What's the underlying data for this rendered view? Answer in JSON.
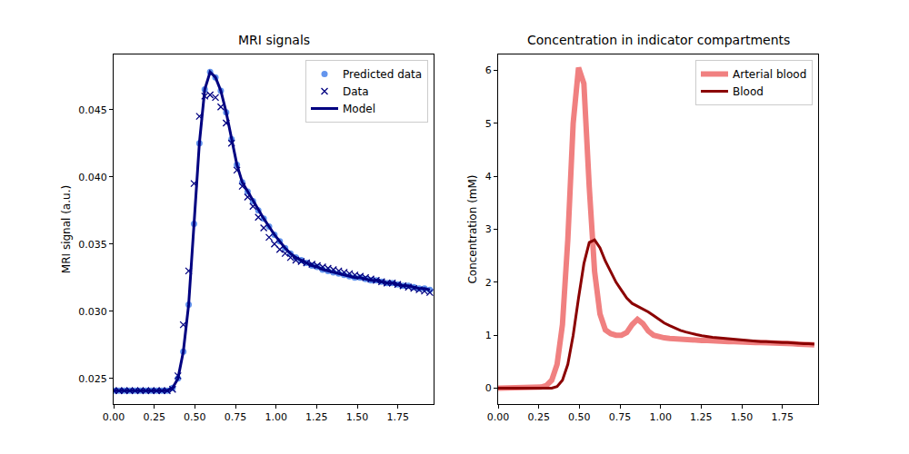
{
  "chart_data": [
    {
      "type": "line",
      "title": "MRI signals",
      "ylabel": "MRI signal (a.u.)",
      "x": [
        0,
        0.033,
        0.066,
        0.099,
        0.132,
        0.165,
        0.198,
        0.231,
        0.264,
        0.297,
        0.33,
        0.363,
        0.396,
        0.429,
        0.462,
        0.495,
        0.528,
        0.561,
        0.594,
        0.627,
        0.66,
        0.693,
        0.726,
        0.759,
        0.792,
        0.825,
        0.858,
        0.891,
        0.924,
        0.957,
        0.99,
        1.023,
        1.056,
        1.089,
        1.122,
        1.155,
        1.188,
        1.221,
        1.254,
        1.287,
        1.32,
        1.353,
        1.386,
        1.419,
        1.452,
        1.485,
        1.518,
        1.551,
        1.584,
        1.617,
        1.65,
        1.683,
        1.716,
        1.749,
        1.782,
        1.815,
        1.848,
        1.881,
        1.914,
        1.947
      ],
      "xlim": [
        0,
        1.97
      ],
      "xticks": [
        {
          "value": 0,
          "label": "0.00"
        },
        0.25,
        {
          "value": 0.5,
          "label": "0.50"
        },
        0.75,
        {
          "value": 1,
          "label": "1.00"
        },
        1.25,
        {
          "value": 1.5,
          "label": "1.50"
        },
        1.75
      ],
      "ylim": [
        0.0231,
        0.0491
      ],
      "yticks": [
        0.025,
        {
          "value": 0.03,
          "label": "0.030"
        },
        0.035,
        {
          "value": 0.04,
          "label": "0.040"
        },
        0.045
      ],
      "grid": false,
      "legend": "upper right",
      "series": [
        {
          "name": "Predicted data",
          "type": "scatter",
          "color": "cornflowerblue",
          "marker": "circle",
          "line_style": "none",
          "values": [
            0.0241,
            0.0241,
            0.0241,
            0.0241,
            0.0241,
            0.0241,
            0.0241,
            0.0241,
            0.0241,
            0.0241,
            0.0241,
            0.0243,
            0.025,
            0.027,
            0.0305,
            0.0365,
            0.0425,
            0.0465,
            0.0478,
            0.0474,
            0.0464,
            0.0448,
            0.0428,
            0.0409,
            0.0396,
            0.0389,
            0.0382,
            0.0375,
            0.0369,
            0.0363,
            0.0357,
            0.0352,
            0.0347,
            0.0343,
            0.034,
            0.0338,
            0.0336,
            0.0334,
            0.0333,
            0.0331,
            0.033,
            0.0329,
            0.0328,
            0.0327,
            0.0326,
            0.0325,
            0.0325,
            0.0324,
            0.0323,
            0.0323,
            0.0322,
            0.0321,
            0.0321,
            0.032,
            0.0319,
            0.0319,
            0.0318,
            0.0317,
            0.0317,
            0.0316
          ]
        },
        {
          "name": "Data",
          "type": "scatter",
          "color": "navy",
          "marker": "x",
          "line_style": "none",
          "values": [
            0.0241,
            0.0241,
            0.0241,
            0.0241,
            0.0241,
            0.0241,
            0.0241,
            0.0241,
            0.0241,
            0.0241,
            0.0241,
            0.0242,
            0.0252,
            0.029,
            0.033,
            0.0395,
            0.0445,
            0.046,
            0.0461,
            0.0459,
            0.0452,
            0.044,
            0.0425,
            0.0405,
            0.0393,
            0.0385,
            0.0378,
            0.037,
            0.0362,
            0.0355,
            0.035,
            0.0346,
            0.0343,
            0.034,
            0.0338,
            0.0337,
            0.0336,
            0.0335,
            0.0334,
            0.0333,
            0.0332,
            0.0331,
            0.033,
            0.0329,
            0.0328,
            0.0327,
            0.0326,
            0.0325,
            0.0324,
            0.0323,
            0.0322,
            0.0321,
            0.0321,
            0.032,
            0.0319,
            0.0318,
            0.0317,
            0.0316,
            0.0315,
            0.0314
          ]
        },
        {
          "name": "Model",
          "type": "line",
          "color": "navy",
          "marker": "none",
          "line_style": "solid",
          "values": [
            0.0241,
            0.0241,
            0.0241,
            0.0241,
            0.0241,
            0.0241,
            0.0241,
            0.0241,
            0.0241,
            0.0241,
            0.0241,
            0.0243,
            0.025,
            0.027,
            0.0305,
            0.0365,
            0.0425,
            0.0465,
            0.0478,
            0.0474,
            0.0464,
            0.0448,
            0.0428,
            0.0409,
            0.0396,
            0.0389,
            0.0382,
            0.0375,
            0.0369,
            0.0363,
            0.0357,
            0.0352,
            0.0347,
            0.0343,
            0.034,
            0.0338,
            0.0336,
            0.0334,
            0.0333,
            0.0331,
            0.033,
            0.0329,
            0.0328,
            0.0327,
            0.0326,
            0.0325,
            0.0325,
            0.0324,
            0.0323,
            0.0323,
            0.0322,
            0.0321,
            0.0321,
            0.032,
            0.0319,
            0.0319,
            0.0318,
            0.0317,
            0.0317,
            0.0316
          ]
        }
      ]
    },
    {
      "type": "line",
      "title": "Concentration in indicator compartments",
      "ylabel": "Concentration (mM)",
      "x": [
        0,
        0.033,
        0.066,
        0.099,
        0.132,
        0.165,
        0.198,
        0.231,
        0.264,
        0.297,
        0.33,
        0.363,
        0.396,
        0.429,
        0.462,
        0.495,
        0.528,
        0.561,
        0.594,
        0.627,
        0.66,
        0.693,
        0.726,
        0.759,
        0.792,
        0.825,
        0.858,
        0.891,
        0.924,
        0.957,
        0.99,
        1.023,
        1.056,
        1.089,
        1.122,
        1.155,
        1.188,
        1.221,
        1.254,
        1.287,
        1.32,
        1.353,
        1.386,
        1.419,
        1.452,
        1.485,
        1.518,
        1.551,
        1.584,
        1.617,
        1.65,
        1.683,
        1.716,
        1.749,
        1.782,
        1.815,
        1.848,
        1.881,
        1.914,
        1.947
      ],
      "xlim": [
        0,
        1.97
      ],
      "xticks": [
        {
          "value": 0,
          "label": "0.00"
        },
        0.25,
        {
          "value": 0.5,
          "label": "0.50"
        },
        0.75,
        {
          "value": 1,
          "label": "1.00"
        },
        1.25,
        {
          "value": 1.5,
          "label": "1.50"
        },
        1.75
      ],
      "ylim": [
        -0.3,
        6.3
      ],
      "yticks": [
        0,
        1,
        2,
        3,
        4,
        5,
        6
      ],
      "grid": false,
      "legend": "upper right",
      "series": [
        {
          "name": "Arterial blood",
          "type": "line",
          "color": "lightcoral",
          "marker": "none",
          "line_style": "solid",
          "values": [
            0,
            0,
            0,
            0,
            0,
            0,
            0,
            0,
            0.02,
            0.05,
            0.15,
            0.45,
            1.2,
            2.8,
            5.0,
            6.05,
            5.75,
            3.8,
            2.2,
            1.4,
            1.1,
            1.03,
            1.0,
            1.0,
            1.05,
            1.2,
            1.3,
            1.22,
            1.08,
            1.0,
            0.97,
            0.95,
            0.94,
            0.93,
            0.92,
            0.92,
            0.91,
            0.91,
            0.9,
            0.9,
            0.89,
            0.89,
            0.88,
            0.88,
            0.88,
            0.87,
            0.87,
            0.87,
            0.86,
            0.86,
            0.86,
            0.85,
            0.85,
            0.85,
            0.84,
            0.84,
            0.83,
            0.83,
            0.83,
            0.82
          ]
        },
        {
          "name": "Blood",
          "type": "line",
          "color": "darkred",
          "marker": "none",
          "line_style": "solid",
          "values": [
            0,
            0,
            0,
            0,
            0,
            0,
            0,
            0,
            0,
            0,
            0,
            0.03,
            0.15,
            0.45,
            1.0,
            1.7,
            2.35,
            2.75,
            2.8,
            2.65,
            2.4,
            2.2,
            2.0,
            1.85,
            1.7,
            1.6,
            1.55,
            1.5,
            1.44,
            1.37,
            1.3,
            1.23,
            1.18,
            1.13,
            1.09,
            1.06,
            1.03,
            1.01,
            0.99,
            0.97,
            0.96,
            0.95,
            0.94,
            0.93,
            0.92,
            0.91,
            0.9,
            0.9,
            0.89,
            0.88,
            0.88,
            0.87,
            0.87,
            0.86,
            0.86,
            0.85,
            0.85,
            0.84,
            0.84,
            0.83
          ]
        }
      ]
    }
  ]
}
